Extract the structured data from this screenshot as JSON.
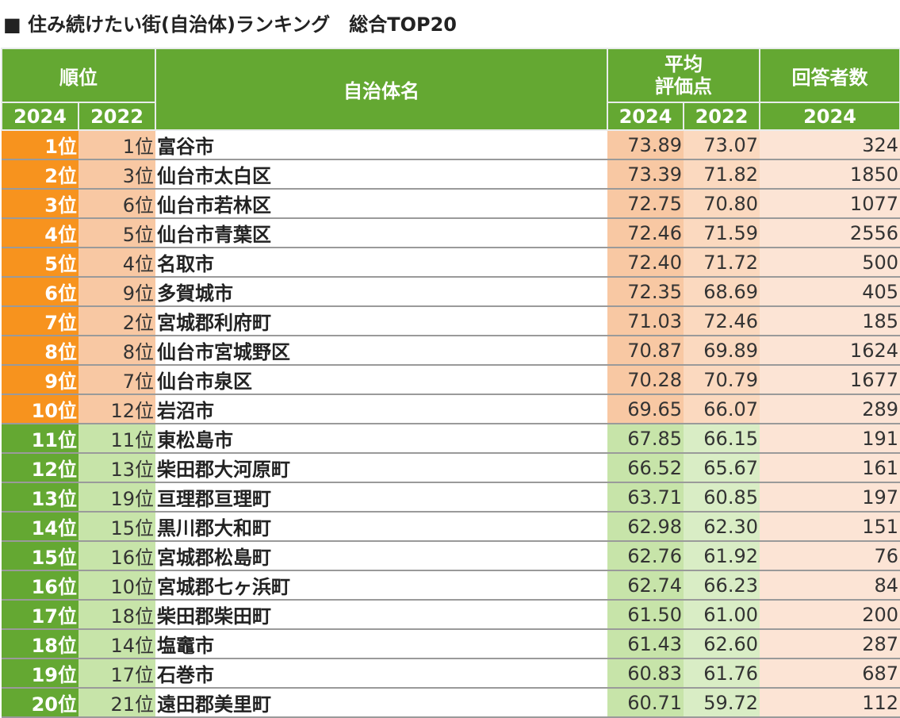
{
  "title": "■ 住み続けたい街(自治体)ランキング　総合TOP20",
  "header": {
    "rank_label": "順位",
    "name_label": "自治体名",
    "score_label_line1": "平均",
    "score_label_line2": "評価点",
    "count_label": "回答者数",
    "year_2024": "2024",
    "year_2022": "2022"
  },
  "colors": {
    "header_green": "#64a832",
    "top10_rank_orange": "#f7931e",
    "top10_light_orange": "#f8c8a3",
    "rest_light_green": "#c7e4a9",
    "count_peach": "#fce4d5"
  },
  "rows": [
    {
      "rank": "1位",
      "prev": "1位",
      "name": "富谷市",
      "s2024": "73.89",
      "s2022": "73.07",
      "count": "324"
    },
    {
      "rank": "2位",
      "prev": "3位",
      "name": "仙台市太白区",
      "s2024": "73.39",
      "s2022": "71.82",
      "count": "1850"
    },
    {
      "rank": "3位",
      "prev": "6位",
      "name": "仙台市若林区",
      "s2024": "72.75",
      "s2022": "70.80",
      "count": "1077"
    },
    {
      "rank": "4位",
      "prev": "5位",
      "name": "仙台市青葉区",
      "s2024": "72.46",
      "s2022": "71.59",
      "count": "2556"
    },
    {
      "rank": "5位",
      "prev": "4位",
      "name": "名取市",
      "s2024": "72.40",
      "s2022": "71.72",
      "count": "500"
    },
    {
      "rank": "6位",
      "prev": "9位",
      "name": "多賀城市",
      "s2024": "72.35",
      "s2022": "68.69",
      "count": "405"
    },
    {
      "rank": "7位",
      "prev": "2位",
      "name": "宮城郡利府町",
      "s2024": "71.03",
      "s2022": "72.46",
      "count": "185"
    },
    {
      "rank": "8位",
      "prev": "8位",
      "name": "仙台市宮城野区",
      "s2024": "70.87",
      "s2022": "69.89",
      "count": "1624"
    },
    {
      "rank": "9位",
      "prev": "7位",
      "name": "仙台市泉区",
      "s2024": "70.28",
      "s2022": "70.79",
      "count": "1677"
    },
    {
      "rank": "10位",
      "prev": "12位",
      "name": "岩沼市",
      "s2024": "69.65",
      "s2022": "66.07",
      "count": "289"
    },
    {
      "rank": "11位",
      "prev": "11位",
      "name": "東松島市",
      "s2024": "67.85",
      "s2022": "66.15",
      "count": "191"
    },
    {
      "rank": "12位",
      "prev": "13位",
      "name": "柴田郡大河原町",
      "s2024": "66.52",
      "s2022": "65.67",
      "count": "161"
    },
    {
      "rank": "13位",
      "prev": "19位",
      "name": "亘理郡亘理町",
      "s2024": "63.71",
      "s2022": "60.85",
      "count": "197"
    },
    {
      "rank": "14位",
      "prev": "15位",
      "name": "黒川郡大和町",
      "s2024": "62.98",
      "s2022": "62.30",
      "count": "151"
    },
    {
      "rank": "15位",
      "prev": "16位",
      "name": "宮城郡松島町",
      "s2024": "62.76",
      "s2022": "61.92",
      "count": "76"
    },
    {
      "rank": "16位",
      "prev": "10位",
      "name": "宮城郡七ヶ浜町",
      "s2024": "62.74",
      "s2022": "66.23",
      "count": "84"
    },
    {
      "rank": "17位",
      "prev": "18位",
      "name": "柴田郡柴田町",
      "s2024": "61.50",
      "s2022": "61.00",
      "count": "200"
    },
    {
      "rank": "18位",
      "prev": "14位",
      "name": "塩竈市",
      "s2024": "61.43",
      "s2022": "62.60",
      "count": "287"
    },
    {
      "rank": "19位",
      "prev": "17位",
      "name": "石巻市",
      "s2024": "60.83",
      "s2022": "61.76",
      "count": "687"
    },
    {
      "rank": "20位",
      "prev": "21位",
      "name": "遠田郡美里町",
      "s2024": "60.71",
      "s2022": "59.72",
      "count": "112"
    }
  ]
}
